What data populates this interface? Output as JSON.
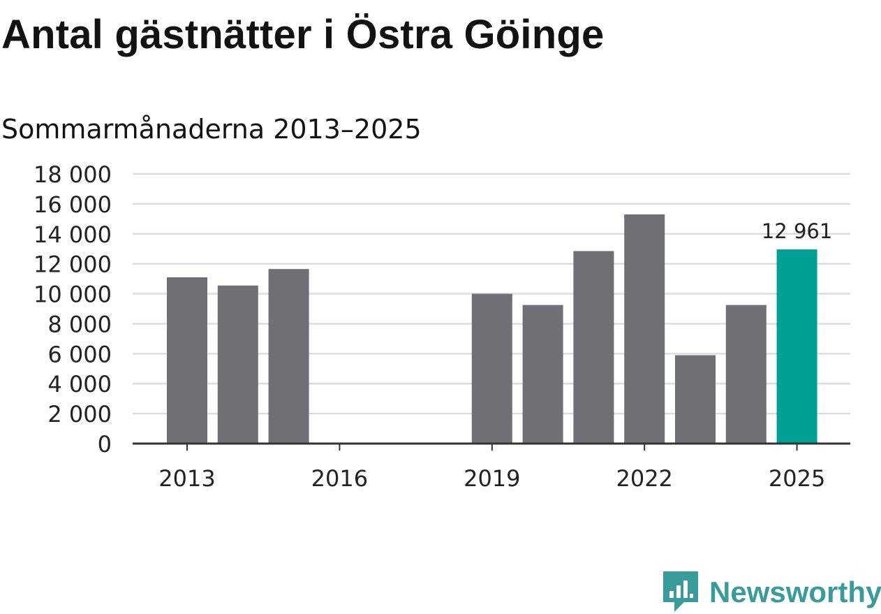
{
  "title": "Antal gästnätter i Östra Göinge",
  "subtitle": "Sommarmånaderna 2013–2025",
  "brand": {
    "name": "Newsworthy",
    "icon": "newsworthy-logo-icon",
    "color": "#3a9c9a"
  },
  "chart_data": {
    "type": "bar",
    "categories": [
      "2013",
      "2014",
      "2015",
      "2016",
      "2017",
      "2018",
      "2019",
      "2020",
      "2021",
      "2022",
      "2023",
      "2024",
      "2025"
    ],
    "values": [
      11100,
      10550,
      11650,
      null,
      null,
      null,
      10000,
      9250,
      12850,
      15300,
      5900,
      9250,
      12961
    ],
    "x_tick_labels": [
      "2013",
      "2016",
      "2019",
      "2022",
      "2025"
    ],
    "y_ticks": [
      0,
      2000,
      4000,
      6000,
      8000,
      10000,
      12000,
      14000,
      16000,
      18000
    ],
    "y_tick_labels": [
      "0",
      "2 000",
      "4 000",
      "6 000",
      "8 000",
      "10 000",
      "12 000",
      "14 000",
      "16 000",
      "18 000"
    ],
    "ylim": [
      0,
      18000
    ],
    "xlabel": "",
    "ylabel": "",
    "grid": true,
    "annotations": [
      {
        "category": "2025",
        "text": "12 961"
      }
    ],
    "colors": {
      "bar": "#706f75",
      "highlight": "#00a096",
      "grid": "#dddddd",
      "axis": "#333333",
      "text": "#222222"
    },
    "highlight_category": "2025"
  }
}
